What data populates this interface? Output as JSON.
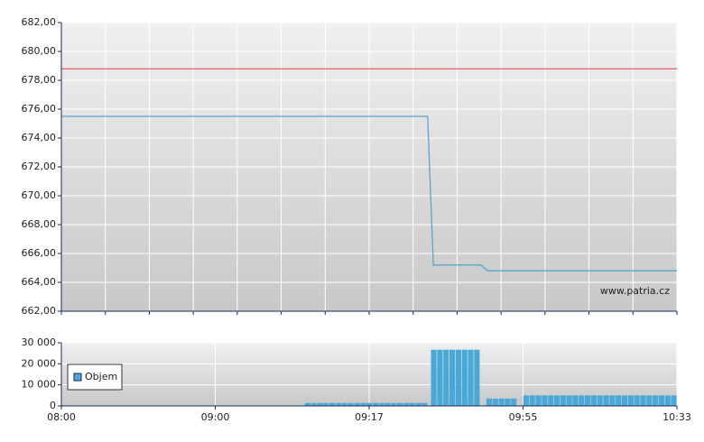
{
  "chart_data": [
    {
      "type": "line",
      "annotation": "www.patria.cz",
      "xlim": [
        0,
        14
      ],
      "xticks": [
        0,
        1,
        2,
        3,
        4,
        5,
        6,
        7,
        8,
        9,
        10,
        11,
        12,
        13,
        14
      ],
      "ylim": [
        662,
        682
      ],
      "yticks": [
        {
          "value": 662,
          "label": "662,00"
        },
        {
          "value": 664,
          "label": "664,00"
        },
        {
          "value": 666,
          "label": "666,00"
        },
        {
          "value": 668,
          "label": "668,00"
        },
        {
          "value": 670,
          "label": "670,00"
        },
        {
          "value": 672,
          "label": "672,00"
        },
        {
          "value": 674,
          "label": "674,00"
        },
        {
          "value": 676,
          "label": "676,00"
        },
        {
          "value": 678,
          "label": "678,00"
        },
        {
          "value": 680,
          "label": "680,00"
        },
        {
          "value": 682,
          "label": "682,00"
        }
      ],
      "grid": true,
      "reference_line": {
        "value": 678.8,
        "color": "#d9403a"
      },
      "x": [
        0,
        8.33,
        8.46,
        9.55,
        9.69,
        14
      ],
      "series": [
        {
          "color": "#5aa5d0",
          "values": [
            675.5,
            675.5,
            665.2,
            665.2,
            664.8,
            664.8
          ]
        }
      ]
    },
    {
      "type": "bar",
      "xlim": [
        0,
        4
      ],
      "xticks": [
        {
          "value": 0,
          "label": "08:00"
        },
        {
          "value": 1,
          "label": "09:00"
        },
        {
          "value": 2,
          "label": "09:17"
        },
        {
          "value": 3,
          "label": "09:55"
        },
        {
          "value": 4,
          "label": "10:33"
        }
      ],
      "ylim": [
        0,
        30000
      ],
      "yticks": [
        0,
        {
          "value": 10000,
          "label": "10 000"
        },
        {
          "value": 20000,
          "label": "20 000"
        },
        {
          "value": 30000,
          "label": "30 000"
        }
      ],
      "grid": true,
      "legend": "bottom-left",
      "bar_width": 0.036,
      "x": [
        1.6,
        1.64,
        1.68,
        1.72,
        1.76,
        1.8,
        1.84,
        1.88,
        1.92,
        1.96,
        2.0,
        2.04,
        2.08,
        2.12,
        2.16,
        2.2,
        2.24,
        2.28,
        2.32,
        2.36,
        2.42,
        2.46,
        2.5,
        2.54,
        2.58,
        2.62,
        2.66,
        2.7,
        2.78,
        2.82,
        2.86,
        2.9,
        2.94,
        3.02,
        3.06,
        3.1,
        3.14,
        3.18,
        3.22,
        3.26,
        3.3,
        3.34,
        3.38,
        3.42,
        3.46,
        3.5,
        3.54,
        3.58,
        3.62,
        3.66,
        3.7,
        3.74,
        3.78,
        3.82,
        3.86,
        3.9,
        3.94,
        3.98
      ],
      "series": [
        {
          "name": "Objem",
          "color": "#4aa8d8",
          "values": [
            1400,
            1400,
            1400,
            1400,
            1400,
            1400,
            1400,
            1400,
            1400,
            1400,
            1400,
            1400,
            1400,
            1400,
            1400,
            1400,
            1400,
            1400,
            1400,
            1400,
            26700,
            26700,
            26700,
            26700,
            26700,
            26700,
            26700,
            26700,
            3500,
            3500,
            3500,
            3500,
            3500,
            5000,
            5000,
            5000,
            5000,
            5000,
            5000,
            5000,
            5000,
            5000,
            5000,
            5000,
            5000,
            5000,
            5000,
            5000,
            5000,
            5000,
            5000,
            5000,
            5000,
            5000,
            5000,
            5000,
            5000,
            5000
          ]
        }
      ]
    }
  ]
}
